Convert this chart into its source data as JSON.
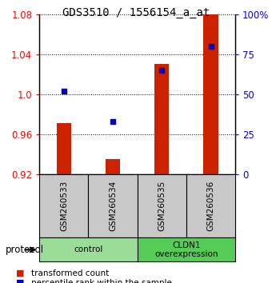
{
  "title": "GDS3510 / 1556154_a_at",
  "samples": [
    "GSM260533",
    "GSM260534",
    "GSM260535",
    "GSM260536"
  ],
  "bar_values": [
    0.971,
    0.935,
    1.03,
    1.08
  ],
  "bar_bottom": 0.92,
  "percentile_values": [
    52,
    33,
    65,
    80
  ],
  "percentile_scale_min": 0,
  "percentile_scale_max": 100,
  "left_ylim": [
    0.92,
    1.08
  ],
  "left_yticks": [
    0.92,
    0.96,
    1.0,
    1.04,
    1.08
  ],
  "right_yticks": [
    0,
    25,
    50,
    75,
    100
  ],
  "right_yticklabels": [
    "0",
    "25",
    "50",
    "75",
    "100%"
  ],
  "bar_color": "#cc2200",
  "dot_color": "#0000cc",
  "groups": [
    {
      "label": "control",
      "samples": [
        0,
        1
      ],
      "color": "#99dd99"
    },
    {
      "label": "CLDN1\noverexpression",
      "samples": [
        2,
        3
      ],
      "color": "#55cc55"
    }
  ],
  "protocol_label": "protocol",
  "legend_bar_label": "transformed count",
  "legend_dot_label": "percentile rank within the sample",
  "sample_box_color": "#c8c8c8",
  "title_fontsize": 10,
  "tick_fontsize": 8.5,
  "label_fontsize": 8
}
